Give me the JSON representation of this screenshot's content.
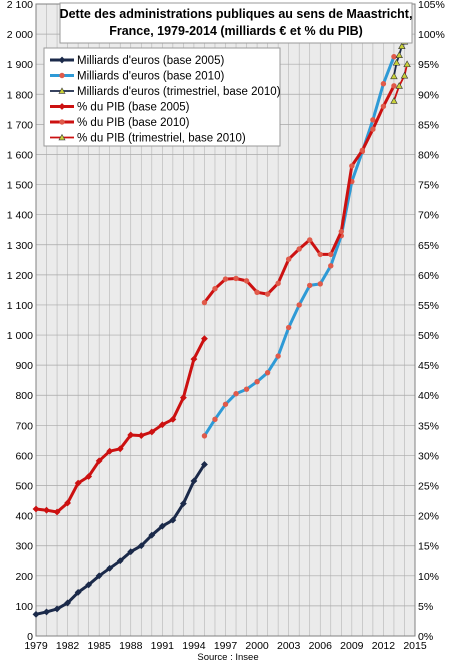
{
  "chart_data": {
    "type": "line",
    "title_lines": [
      "Dette des administrations publiques au sens de Maastricht,",
      "France, 1979-2014 (milliards € et % du PIB)"
    ],
    "source": "Source : Insee",
    "grid": true,
    "legend_position": "top-left",
    "x_axis": {
      "min": 1979,
      "max": 2015,
      "ticks": [
        "1979",
        "1982",
        "1985",
        "1988",
        "1991",
        "1994",
        "1997",
        "2000",
        "2003",
        "2006",
        "2009",
        "2012",
        "2015"
      ]
    },
    "y_left": {
      "min": 0,
      "max": 2100,
      "step": 100,
      "ticks": [
        "0",
        "100",
        "200",
        "300",
        "400",
        "500",
        "600",
        "700",
        "800",
        "900",
        "1 000",
        "1 100",
        "1 200",
        "1 300",
        "1 400",
        "1 500",
        "1 600",
        "1 700",
        "1 800",
        "1 900",
        "2 000",
        "2 100"
      ]
    },
    "y_right": {
      "min": 0,
      "max": 105,
      "step": 5,
      "ticks": [
        "0%",
        "5%",
        "10%",
        "15%",
        "20%",
        "25%",
        "30%",
        "35%",
        "40%",
        "45%",
        "50%",
        "55%",
        "60%",
        "65%",
        "70%",
        "75%",
        "80%",
        "85%",
        "90%",
        "95%",
        "100%",
        "105%"
      ]
    },
    "series": [
      {
        "name": "Milliards d'euros (base 2005)",
        "axis": "left",
        "color": "#1b2a4a",
        "marker": "diamond",
        "marker_color": "#1b2a4a",
        "x": [
          1979,
          1980,
          1981,
          1982,
          1983,
          1984,
          1985,
          1986,
          1987,
          1988,
          1989,
          1990,
          1991,
          1992,
          1993,
          1994,
          1995
        ],
        "values": [
          72,
          80,
          90,
          110,
          145,
          170,
          200,
          225,
          250,
          280,
          300,
          335,
          365,
          385,
          440,
          515,
          570
        ]
      },
      {
        "name": "Milliards d'euros (base 2010)",
        "axis": "left",
        "color": "#2e9ad6",
        "marker": "circle",
        "marker_color": "#e05a4a",
        "x": [
          1995,
          1996,
          1997,
          1998,
          1999,
          2000,
          2001,
          2002,
          2003,
          2004,
          2005,
          2006,
          2007,
          2008,
          2009,
          2010,
          2011,
          2012,
          2013
        ],
        "values": [
          665,
          720,
          770,
          805,
          820,
          845,
          875,
          930,
          1025,
          1100,
          1165,
          1170,
          1230,
          1330,
          1510,
          1610,
          1715,
          1835,
          1925
        ]
      },
      {
        "name": "Milliards d'euros (trimestriel, base 2010)",
        "axis": "left",
        "color": "#1b2a4a",
        "marker": "triangle",
        "marker_color": "#c9d13a",
        "x": [
          2013.0,
          2013.25,
          2013.5,
          2013.75,
          2014.0,
          2014.25
        ],
        "values": [
          1860,
          1905,
          1930,
          1960,
          1975,
          2020
        ]
      },
      {
        "name": "% du PIB (base 2005)",
        "axis": "right",
        "color": "#cc1111",
        "marker": "diamond",
        "marker_color": "#cc1111",
        "x": [
          1979,
          1980,
          1981,
          1982,
          1983,
          1984,
          1985,
          1986,
          1987,
          1988,
          1989,
          1990,
          1991,
          1992,
          1993,
          1994,
          1995
        ],
        "values": [
          21.1,
          20.9,
          20.6,
          22.1,
          25.4,
          26.5,
          29.1,
          30.7,
          31.1,
          33.4,
          33.3,
          33.9,
          35.1,
          36.0,
          39.6,
          46.0,
          49.4
        ]
      },
      {
        "name": "% du PIB (base 2010)",
        "axis": "right",
        "color": "#cc1111",
        "marker": "circle",
        "marker_color": "#e05a4a",
        "x": [
          1995,
          1996,
          1997,
          1998,
          1999,
          2000,
          2001,
          2002,
          2003,
          2004,
          2005,
          2006,
          2007,
          2008,
          2009,
          2010,
          2011,
          2012,
          2013
        ],
        "values": [
          55.4,
          57.7,
          59.3,
          59.4,
          59.0,
          57.1,
          56.8,
          58.6,
          62.6,
          64.3,
          65.8,
          63.4,
          63.4,
          67.2,
          78.1,
          80.7,
          84.2,
          88.0,
          91.4
        ]
      },
      {
        "name": "% du PIB (trimestriel, base 2010)",
        "axis": "right",
        "color": "#cc1111",
        "marker": "triangle",
        "marker_color": "#c9d13a",
        "x": [
          2013.0,
          2013.5,
          2014.0,
          2014.25
        ],
        "values": [
          88.9,
          91.4,
          93.1,
          95.0
        ]
      }
    ]
  }
}
